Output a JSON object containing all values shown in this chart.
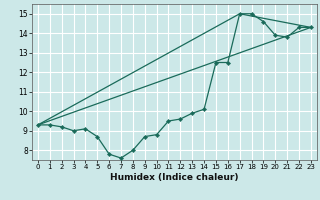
{
  "title": "",
  "xlabel": "Humidex (Indice chaleur)",
  "background_color": "#cce8e8",
  "grid_color": "#ffffff",
  "line_color": "#1a6b5a",
  "xlim": [
    -0.5,
    23.5
  ],
  "ylim": [
    7.5,
    15.5
  ],
  "yticks": [
    8,
    9,
    10,
    11,
    12,
    13,
    14,
    15
  ],
  "xticks": [
    0,
    1,
    2,
    3,
    4,
    5,
    6,
    7,
    8,
    9,
    10,
    11,
    12,
    13,
    14,
    15,
    16,
    17,
    18,
    19,
    20,
    21,
    22,
    23
  ],
  "series1_x": [
    0,
    1,
    2,
    3,
    4,
    5,
    6,
    7,
    8,
    9,
    10,
    11,
    12,
    13,
    14,
    15,
    16,
    17,
    18,
    19,
    20,
    21,
    22,
    23
  ],
  "series1_y": [
    9.3,
    9.3,
    9.2,
    9.0,
    9.1,
    8.7,
    7.8,
    7.6,
    8.0,
    8.7,
    8.8,
    9.5,
    9.6,
    9.9,
    10.1,
    12.5,
    12.5,
    15.0,
    15.0,
    14.6,
    13.9,
    13.8,
    14.3,
    14.3
  ],
  "series2_x": [
    0,
    23
  ],
  "series2_y": [
    9.3,
    14.3
  ],
  "series3_x": [
    0,
    17,
    23
  ],
  "series3_y": [
    9.3,
    15.0,
    14.3
  ]
}
